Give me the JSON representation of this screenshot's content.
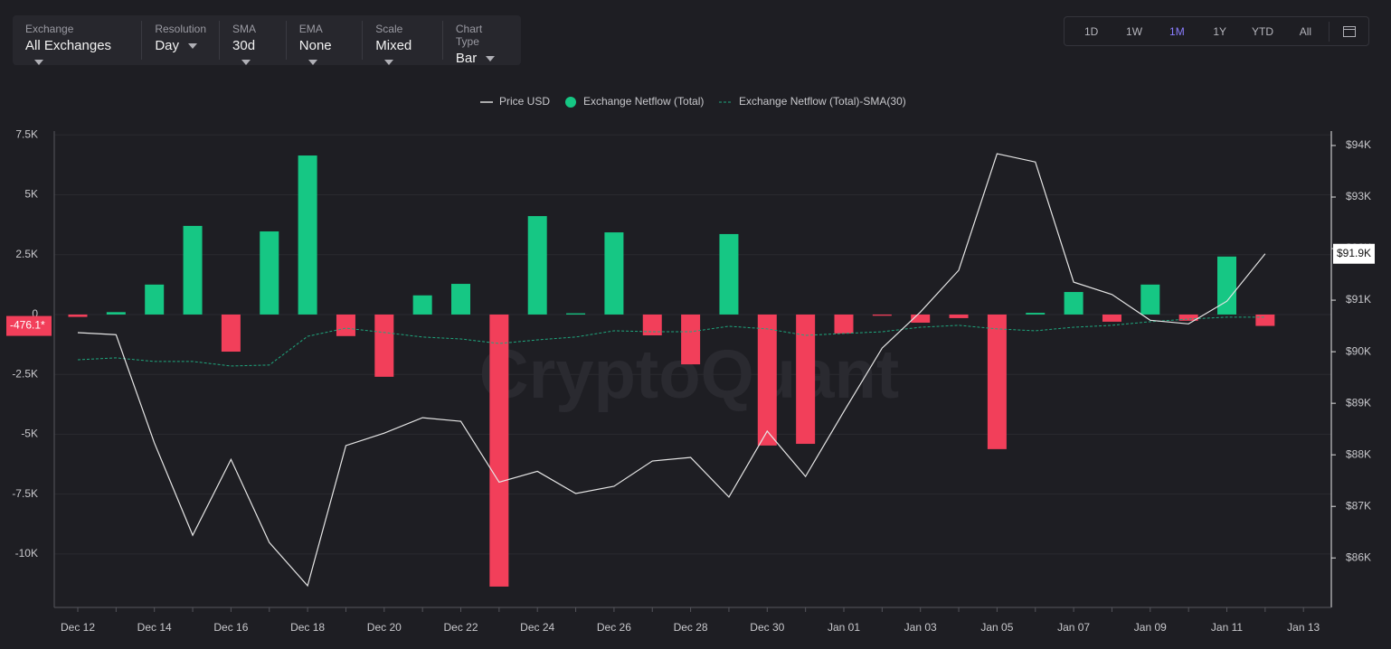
{
  "toolbar": {
    "filters": [
      {
        "label": "Exchange",
        "value": "All Exchanges"
      },
      {
        "label": "Resolution",
        "value": "Day"
      },
      {
        "label": "SMA",
        "value": "30d"
      },
      {
        "label": "EMA",
        "value": "None"
      },
      {
        "label": "Scale",
        "value": "Mixed"
      },
      {
        "label": "Chart Type",
        "value": "Bar"
      }
    ],
    "ranges": [
      "1D",
      "1W",
      "1M",
      "1Y",
      "YTD",
      "All"
    ],
    "active_range": 2
  },
  "chart_data": {
    "type": "bar",
    "watermark": "CryptoQuant",
    "categories": [
      "Dec 12",
      null,
      "Dec 14",
      null,
      "Dec 16",
      null,
      "Dec 18",
      null,
      "Dec 20",
      null,
      "Dec 22",
      null,
      "Dec 24",
      null,
      "Dec 26",
      null,
      "Dec 28",
      null,
      "Dec 30",
      null,
      "Jan 01",
      null,
      "Jan 03",
      null,
      "Jan 05",
      null,
      "Jan 07",
      null,
      "Jan 09",
      null,
      "Jan 11",
      null,
      "Jan 13"
    ],
    "series": [
      {
        "name": "Price USD",
        "type": "line",
        "axis": "y2",
        "color": "#e6e6e6",
        "last_label": "$91.9K",
        "values": [
          90.37,
          90.33,
          88.23,
          86.44,
          87.91,
          86.3,
          85.46,
          88.18,
          88.42,
          88.72,
          88.65,
          87.47,
          87.68,
          87.25,
          87.39,
          87.88,
          87.95,
          87.18,
          88.46,
          87.58,
          88.84,
          90.07,
          90.77,
          91.58,
          93.84,
          93.68,
          91.35,
          91.11,
          90.61,
          90.54,
          90.98,
          91.9,
          null
        ]
      },
      {
        "name": "Exchange Netflow (Total)",
        "type": "bar",
        "color": "#16c784",
        "negative_color": "#f23f5a",
        "last_label": "-476.1*",
        "values": [
          -0.1,
          0.1,
          1.25,
          3.7,
          -1.55,
          3.47,
          6.64,
          -0.9,
          -2.6,
          0.8,
          1.28,
          -11.36,
          4.11,
          0.05,
          3.43,
          -0.87,
          -2.08,
          3.36,
          -5.47,
          -5.4,
          -0.79,
          -0.05,
          -0.34,
          -0.15,
          -5.62,
          0.07,
          0.94,
          -0.3,
          1.25,
          -0.26,
          2.42,
          -0.4761,
          null
        ]
      },
      {
        "name": "Exchange Netflow (Total)-SMA(30)",
        "type": "line",
        "dashed": true,
        "color": "#1fa67d",
        "values": [
          -1.89,
          -1.81,
          -1.96,
          -1.96,
          -2.15,
          -2.11,
          -0.91,
          -0.57,
          -0.75,
          -0.94,
          -1.02,
          -1.21,
          -1.06,
          -0.94,
          -0.68,
          -0.72,
          -0.72,
          -0.49,
          -0.6,
          -0.87,
          -0.79,
          -0.72,
          -0.53,
          -0.45,
          -0.6,
          -0.68,
          -0.53,
          -0.45,
          -0.3,
          -0.19,
          -0.11,
          -0.11,
          null
        ]
      }
    ],
    "ylim": [
      -12.23,
      7.66
    ],
    "yticks": [
      {
        "value": 7.5,
        "label": "7.5K"
      },
      {
        "value": 5,
        "label": "5K"
      },
      {
        "value": 2.5,
        "label": "2.5K"
      },
      0,
      {
        "value": -2.5,
        "label": "-2.5K"
      },
      {
        "value": -5,
        "label": "-5K"
      },
      {
        "value": -7.5,
        "label": "-7.5K"
      },
      {
        "value": -10,
        "label": "-10K"
      }
    ],
    "y2lim": [
      85.04,
      94.28
    ],
    "y2ticks": [
      {
        "value": 94,
        "label": "$94K"
      },
      {
        "value": 93,
        "label": "$93K"
      },
      {
        "value": 92,
        "label": "$92K"
      },
      {
        "value": 91,
        "label": "$91K"
      },
      {
        "value": 90,
        "label": "$90K"
      },
      {
        "value": 89,
        "label": "$89K"
      },
      {
        "value": 88,
        "label": "$88K"
      },
      {
        "value": 87,
        "label": "$87K"
      },
      {
        "value": 86,
        "label": "$86K"
      }
    ],
    "grid": true
  }
}
